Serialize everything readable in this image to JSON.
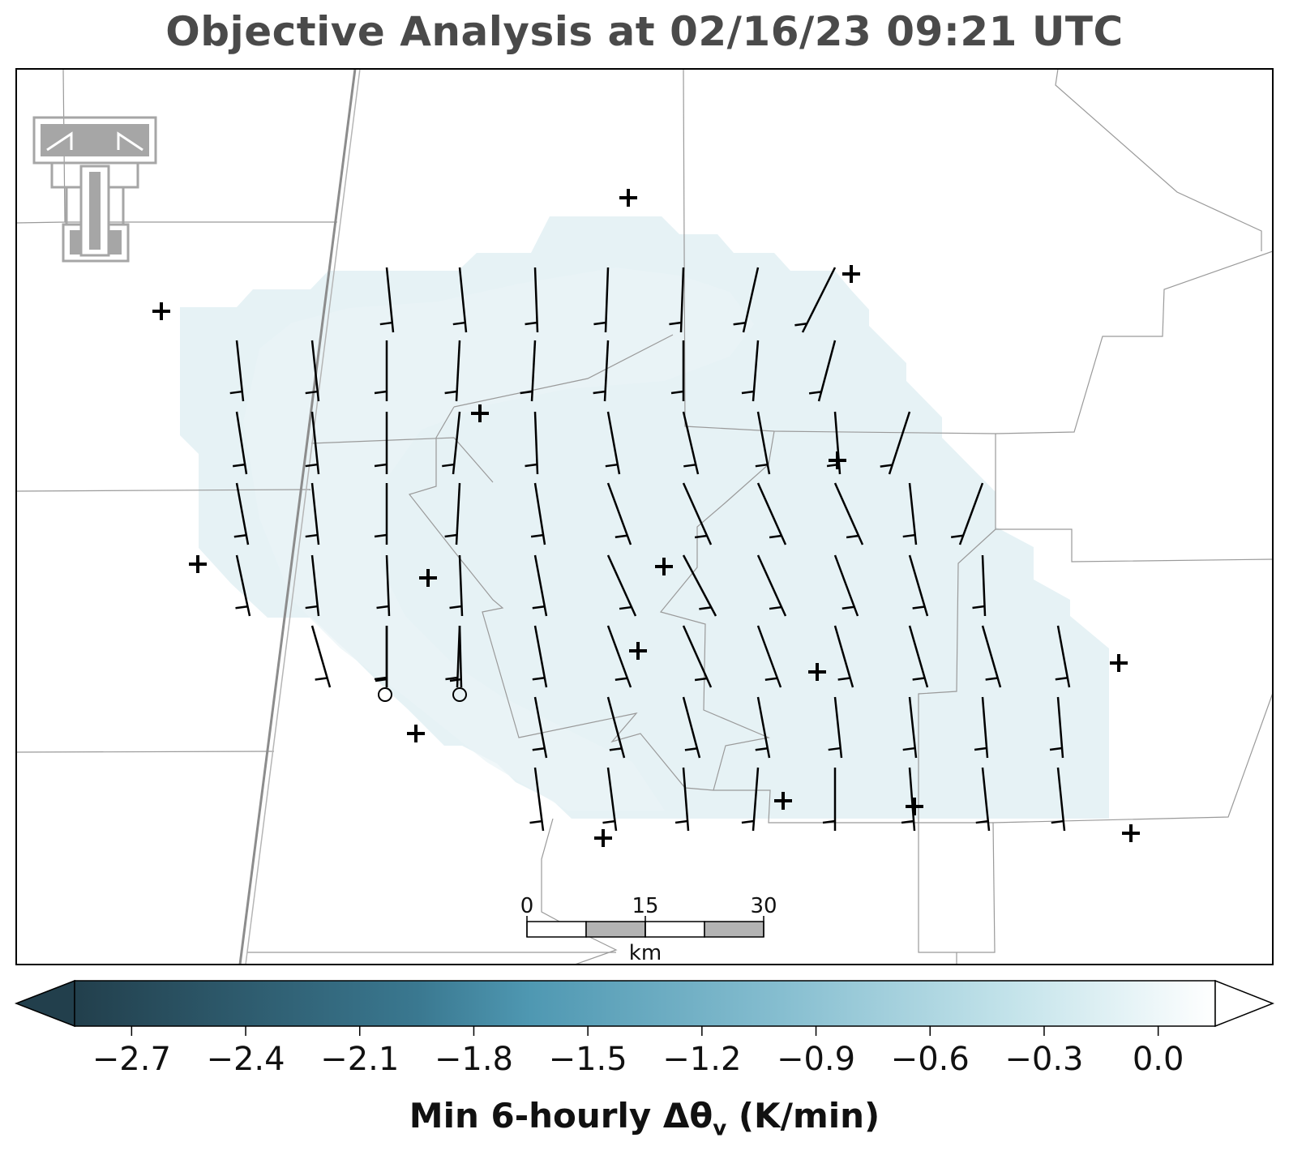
{
  "title": "Objective Analysis at 02/16/23 09:21 UTC",
  "colorbar": {
    "label_main": "Min 6-hourly Δθ",
    "label_sub": "v",
    "label_unit": " (K/min)",
    "ticks": [
      "−2.7",
      "−2.4",
      "−2.1",
      "−1.8",
      "−1.5",
      "−1.2",
      "−0.9",
      "−0.6",
      "−0.3",
      "0.0"
    ],
    "tick_values": [
      -2.7,
      -2.4,
      -2.1,
      -1.8,
      -1.5,
      -1.2,
      -0.9,
      -0.6,
      -0.3,
      0.0
    ],
    "range": [
      -2.85,
      0.15
    ],
    "extend": "both",
    "colors": [
      "#223f4c",
      "#3a7890",
      "#4f98b2",
      "#86bed0",
      "#c3e3ea",
      "#ffffff"
    ]
  },
  "scale_bar": {
    "labels": [
      "0",
      "15",
      "30"
    ],
    "unit": "km",
    "colors": [
      "#ffffff",
      "#b3b3b3"
    ]
  },
  "map": {
    "field_color": "#e2f0f4",
    "logo": "texas-tech-double-t-logo",
    "station_marker": "plus-icon",
    "calm_marker": "calm-circle-icon",
    "barb_color": "#000000"
  }
}
